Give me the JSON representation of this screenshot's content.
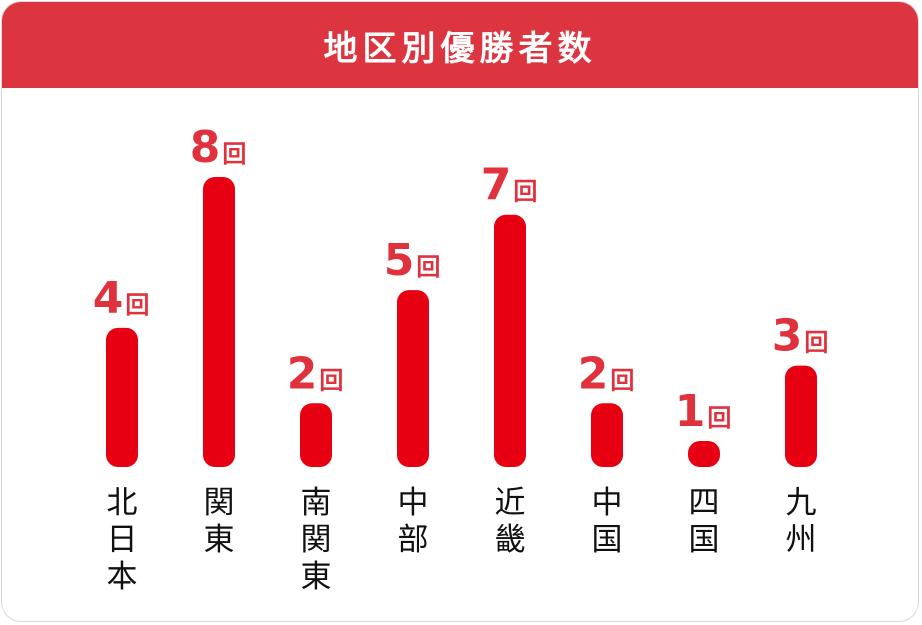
{
  "chart_data": {
    "type": "bar",
    "title": "地区別優勝者数",
    "categories": [
      "北日本",
      "関東",
      "南関東",
      "中部",
      "近畿",
      "中国",
      "四国",
      "九州"
    ],
    "values": [
      4,
      8,
      2,
      5,
      7,
      2,
      1,
      3
    ],
    "unit": "回",
    "ylim": [
      0,
      8
    ],
    "grid": false,
    "colors": {
      "header": "#dc3540",
      "bar": "#e60012",
      "label": "#e0323d",
      "text": "#111111"
    }
  }
}
